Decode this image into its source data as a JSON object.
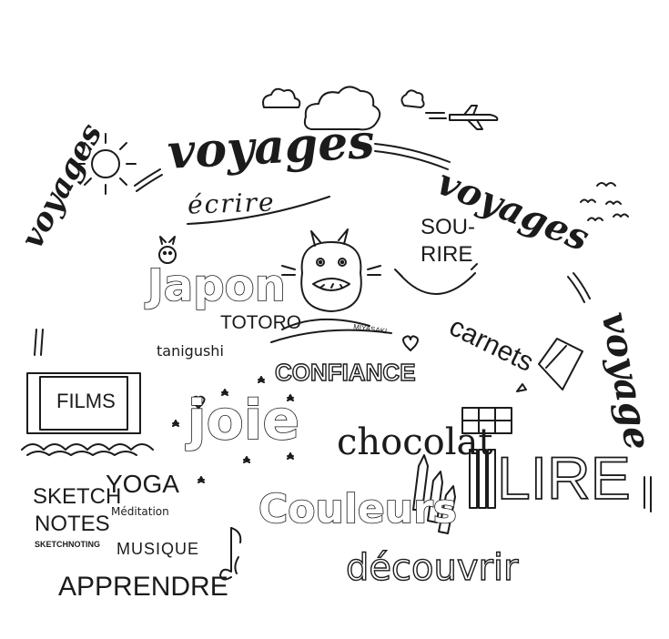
{
  "words": {
    "voyages_top": "voyages",
    "voyages_left": "voyages",
    "voyages_right": "voyages",
    "voyage_far_right": "voyage",
    "ecrire": "écrire",
    "sou": "SOU-",
    "rire": "RIRE",
    "japon": "Japon",
    "totoro": "TOTORO",
    "miyasaki": "MIYASAKI",
    "tanigushi": "tanigushi",
    "confiance": "CONFIANCE",
    "carnets": "carnets",
    "films": "FILMS",
    "joie": "joie",
    "chocolat": "chocolat",
    "lire": "LIRE",
    "sketch": "SKETCH",
    "notes": "NOTES",
    "sketchnoting": "SKETCHNOTING",
    "yoga": "YOGA",
    "meditation": "Méditation",
    "couleurs": "Couleurs",
    "musique": "MUSIQUE",
    "apprendre": "APPRENDRE",
    "decouvrir": "découvrir"
  },
  "icons": {
    "sun": "sun-icon",
    "clouds": "cloud-icon",
    "airplane": "airplane-icon",
    "birds": "birds-icon",
    "rabbit": "rabbit-icon",
    "totoro": "totoro-icon",
    "film_screen": "film-screen-icon",
    "book": "book-icon",
    "pencils": "pencils-icon",
    "music_note": "music-note-icon",
    "window": "window-icon",
    "heart": "heart-icon",
    "star": "star-icon"
  },
  "colors": {
    "ink": "#1b1b1b",
    "paper": "#ffffff"
  }
}
